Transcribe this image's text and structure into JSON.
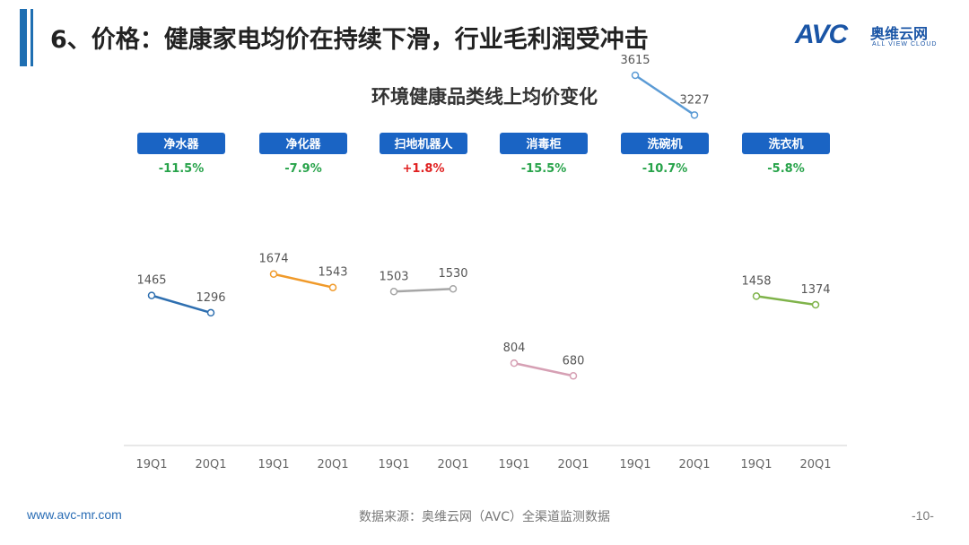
{
  "header": {
    "title": "6、价格：健康家电均价在持续下滑，行业毛利润受冲击"
  },
  "logo": {
    "brand": "AVC",
    "name_cn": "奥维云网",
    "name_en": "ALL VIEW CLOUD"
  },
  "colors": {
    "accent": "#1f6fb2",
    "badge_bg": "#1a64c4",
    "negative_change": "#27a34a",
    "positive_change": "#e02020"
  },
  "chart_data": {
    "type": "line",
    "title": "环境健康品类线上均价变化",
    "x": [
      "19Q1",
      "20Q1"
    ],
    "ylim": [
      0,
      4000
    ],
    "grid": false,
    "legend": "none",
    "series": [
      {
        "name": "净水器",
        "change": "-11.5%",
        "values": [
          1465,
          1296
        ],
        "labels": [
          "1465",
          "1296"
        ],
        "color": "#2e6fb0"
      },
      {
        "name": "净化器",
        "change": "-7.9%",
        "values": [
          1674,
          1543
        ],
        "labels": [
          "1674",
          "1543"
        ],
        "color": "#f09a2a"
      },
      {
        "name": "扫地机器人",
        "change": "+1.8%",
        "values": [
          1503,
          1530
        ],
        "labels": [
          "1503",
          "1530"
        ],
        "color": "#a6a6a6"
      },
      {
        "name": "消毒柜",
        "change": "-15.5%",
        "values": [
          804,
          680
        ],
        "labels": [
          "804",
          "680"
        ],
        "color": "#d6a0b4"
      },
      {
        "name": "洗碗机",
        "change": "-10.7%",
        "values": [
          3615,
          3227
        ],
        "labels": [
          "3615",
          "3227"
        ],
        "color": "#5b9bd5"
      },
      {
        "name": "洗衣机",
        "change": "-5.8%",
        "values": [
          1458,
          1374
        ],
        "labels": [
          "1458",
          "1374"
        ],
        "color": "#7fb34a"
      }
    ]
  },
  "footer": {
    "url": "www.avc-mr.com",
    "source": "数据来源：奥维云网（AVC）全渠道监测数据",
    "page": "-10-"
  }
}
